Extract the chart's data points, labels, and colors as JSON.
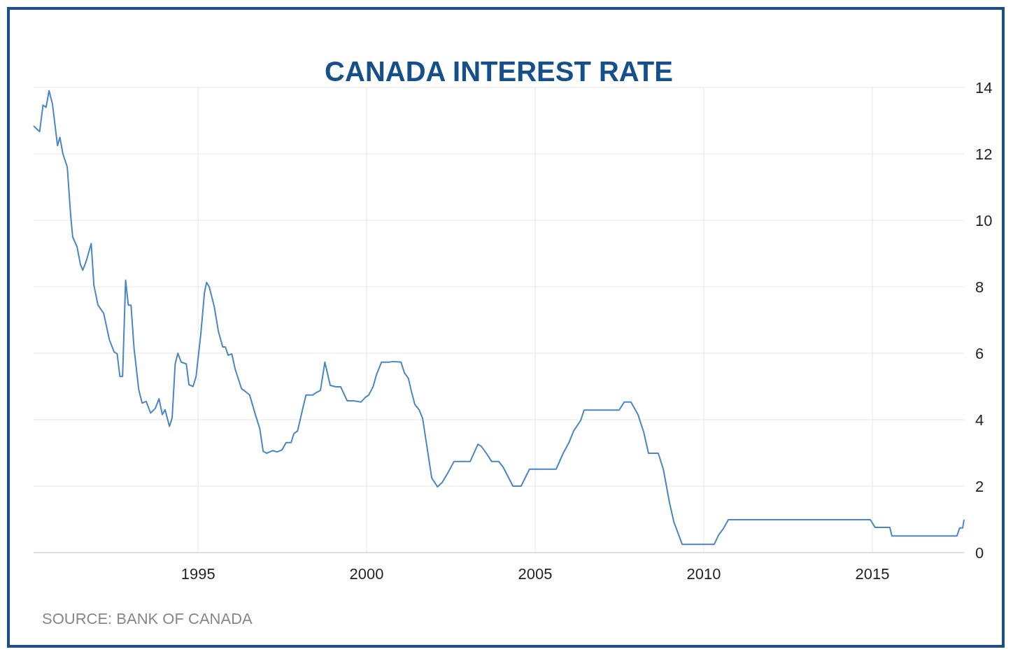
{
  "chart_data": {
    "type": "line",
    "title": "CANADA INTEREST RATE",
    "annotations": [
      "SOURCE: BANK OF CANADA"
    ],
    "xlim": [
      1990.12,
      2017.72
    ],
    "xticks": [
      1995,
      2000,
      2005,
      2010,
      2015
    ],
    "ylim": [
      0,
      14
    ],
    "yticks": [
      0,
      2,
      4,
      6,
      8,
      10,
      12,
      14
    ],
    "grid": true,
    "series": [
      {
        "color": "#4a86c5",
        "x": [
          1990.12,
          1990.3,
          1990.4,
          1990.49,
          1990.58,
          1990.68,
          1990.83,
          1990.9,
          1990.99,
          1991.12,
          1991.22,
          1991.28,
          1991.41,
          1991.51,
          1991.58,
          1991.68,
          1991.83,
          1991.91,
          1992.03,
          1992.2,
          1992.37,
          1992.51,
          1992.6,
          1992.68,
          1992.76,
          1992.85,
          1992.93,
          1993.01,
          1993.1,
          1993.24,
          1993.34,
          1993.46,
          1993.59,
          1993.73,
          1993.84,
          1993.94,
          1994.02,
          1994.15,
          1994.23,
          1994.32,
          1994.4,
          1994.5,
          1994.65,
          1994.73,
          1994.85,
          1994.94,
          1995.08,
          1995.19,
          1995.25,
          1995.33,
          1995.48,
          1995.6,
          1995.73,
          1995.81,
          1995.89,
          1996.0,
          1996.1,
          1996.29,
          1996.39,
          1996.53,
          1996.7,
          1996.83,
          1996.93,
          1997.03,
          1997.22,
          1997.34,
          1997.49,
          1997.61,
          1997.76,
          1997.84,
          1997.95,
          1998.11,
          1998.2,
          1998.4,
          1998.51,
          1998.63,
          1998.76,
          1998.92,
          1999.09,
          1999.23,
          1999.42,
          1999.61,
          1999.83,
          1999.96,
          2000.06,
          2000.19,
          2000.29,
          2000.44,
          2000.66,
          2000.79,
          2001.02,
          2001.12,
          2001.24,
          2001.33,
          2001.43,
          2001.56,
          2001.66,
          2001.93,
          2002.1,
          2002.24,
          2002.41,
          2002.59,
          2003.07,
          2003.3,
          2003.4,
          2003.55,
          2003.71,
          2003.92,
          2004.05,
          2004.34,
          2004.58,
          2004.83,
          2005.62,
          2005.83,
          2006.0,
          2006.14,
          2006.35,
          2006.45,
          2007.49,
          2007.64,
          2007.84,
          2008.05,
          2008.22,
          2008.36,
          2008.65,
          2008.8,
          2008.98,
          2009.11,
          2009.36,
          2010.31,
          2010.44,
          2010.58,
          2010.73,
          2014.94,
          2015.08,
          2015.52,
          2015.58,
          2017.51,
          2017.59,
          2017.68,
          2017.72
        ],
        "values": [
          12.84,
          12.67,
          13.47,
          13.4,
          13.9,
          13.5,
          12.25,
          12.5,
          12.0,
          11.6,
          10.15,
          9.5,
          9.2,
          8.67,
          8.5,
          8.77,
          9.3,
          8.04,
          7.45,
          7.2,
          6.4,
          6.04,
          5.98,
          5.3,
          5.3,
          8.2,
          7.45,
          7.45,
          6.15,
          4.9,
          4.5,
          4.55,
          4.2,
          4.34,
          4.63,
          4.15,
          4.3,
          3.8,
          4.05,
          5.68,
          6.0,
          5.73,
          5.68,
          5.05,
          5.0,
          5.3,
          6.57,
          7.83,
          8.13,
          8.0,
          7.4,
          6.67,
          6.19,
          6.19,
          5.94,
          5.98,
          5.52,
          4.93,
          4.86,
          4.74,
          4.15,
          3.73,
          3.05,
          2.99,
          3.07,
          3.03,
          3.09,
          3.31,
          3.31,
          3.58,
          3.66,
          4.36,
          4.74,
          4.74,
          4.82,
          4.88,
          5.73,
          5.03,
          4.99,
          4.99,
          4.57,
          4.57,
          4.53,
          4.67,
          4.74,
          4.99,
          5.35,
          5.73,
          5.73,
          5.75,
          5.73,
          5.41,
          5.24,
          4.84,
          4.46,
          4.29,
          4.04,
          2.25,
          1.98,
          2.11,
          2.4,
          2.74,
          2.74,
          3.26,
          3.2,
          2.99,
          2.74,
          2.74,
          2.57,
          2.0,
          2.0,
          2.51,
          2.51,
          2.99,
          3.31,
          3.66,
          3.98,
          4.29,
          4.29,
          4.53,
          4.53,
          4.15,
          3.62,
          2.99,
          2.99,
          2.51,
          1.52,
          0.93,
          0.25,
          0.25,
          0.53,
          0.72,
          0.99,
          0.99,
          0.76,
          0.76,
          0.5,
          0.5,
          0.74,
          0.74,
          0.99
        ]
      }
    ]
  }
}
